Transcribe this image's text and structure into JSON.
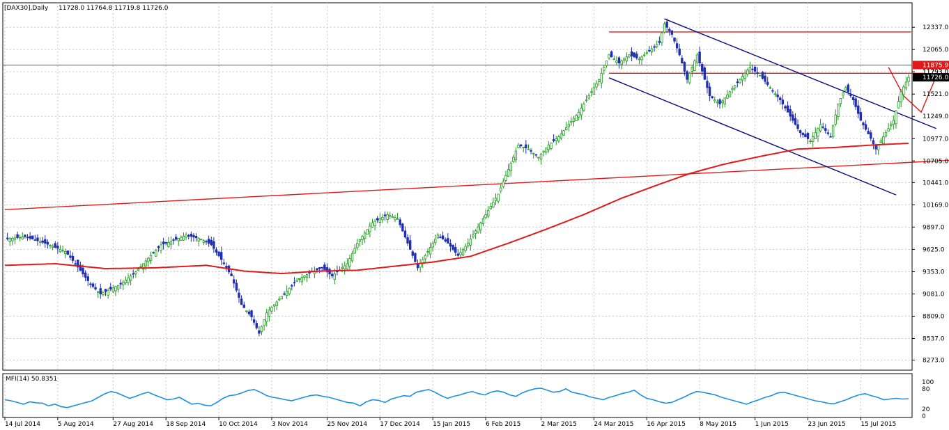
{
  "header": {
    "symbol": "[DAX30],Daily",
    "ohlc": "11728.0 11764.8 11719.8 11726.0"
  },
  "indicator": {
    "label": "MFI(14) 50.8351",
    "levels": [
      "100",
      "80",
      "20",
      "0"
    ]
  },
  "colors": {
    "bull": "#1a9a1a",
    "bear": "#1f2fb0",
    "ma": "#e01a1a",
    "trend": "#e01a1a",
    "channel": "#0a0a7a",
    "mfi": "#1e8fe0",
    "grid": "#c8c8c8",
    "price_tag_red": "#e01a1a",
    "price_tag_dark": "#000000"
  },
  "chart_data": [
    {
      "type": "candlestick",
      "title": "",
      "ylim": [
        8150,
        12500
      ],
      "yticks": [
        "12337.0",
        "12065.0",
        "11793.0",
        "11521.0",
        "11249.0",
        "10977.0",
        "10705.0",
        "10441.0",
        "10169.0",
        "9897.0",
        "9625.0",
        "9353.0",
        "9081.0",
        "8809.0",
        "8537.0",
        "8273.0"
      ],
      "xticks": [
        "14 Jul 2014",
        "5 Aug 2014",
        "27 Aug 2014",
        "18 Sep 2014",
        "10 Oct 2014",
        "3 Nov 2014",
        "25 Nov 2014",
        "17 Dec 2014",
        "15 Jan 2015",
        "6 Feb 2015",
        "2 Mar 2015",
        "24 Mar 2015",
        "16 Apr 2015",
        "8 May 2015",
        "1 Jun 2015",
        "23 Jun 2015",
        "15 Jul 2015"
      ],
      "close_path": [
        [
          0,
          9750
        ],
        [
          8,
          9780
        ],
        [
          16,
          9700
        ],
        [
          24,
          9600
        ],
        [
          28,
          9450
        ],
        [
          34,
          9200
        ],
        [
          38,
          9080
        ],
        [
          46,
          9200
        ],
        [
          52,
          9350
        ],
        [
          58,
          9550
        ],
        [
          62,
          9680
        ],
        [
          66,
          9720
        ],
        [
          72,
          9800
        ],
        [
          78,
          9750
        ],
        [
          82,
          9680
        ],
        [
          86,
          9500
        ],
        [
          90,
          9300
        ],
        [
          94,
          8950
        ],
        [
          98,
          8800
        ],
        [
          101,
          8600
        ],
        [
          104,
          8850
        ],
        [
          110,
          9050
        ],
        [
          116,
          9250
        ],
        [
          122,
          9350
        ],
        [
          126,
          9400
        ],
        [
          130,
          9300
        ],
        [
          136,
          9450
        ],
        [
          140,
          9700
        ],
        [
          146,
          9950
        ],
        [
          152,
          10050
        ],
        [
          156,
          10000
        ],
        [
          160,
          9700
        ],
        [
          164,
          9400
        ],
        [
          168,
          9600
        ],
        [
          172,
          9800
        ],
        [
          176,
          9700
        ],
        [
          180,
          9550
        ],
        [
          184,
          9700
        ],
        [
          188,
          9900
        ],
        [
          192,
          10100
        ],
        [
          196,
          10300
        ],
        [
          200,
          10600
        ],
        [
          204,
          10900
        ],
        [
          208,
          10850
        ],
        [
          212,
          10750
        ],
        [
          216,
          10900
        ],
        [
          220,
          11000
        ],
        [
          224,
          11150
        ],
        [
          228,
          11300
        ],
        [
          232,
          11500
        ],
        [
          236,
          11700
        ],
        [
          240,
          12000
        ],
        [
          244,
          11900
        ],
        [
          248,
          12000
        ],
        [
          252,
          11950
        ],
        [
          256,
          12050
        ],
        [
          260,
          12150
        ],
        [
          262,
          12380
        ],
        [
          265,
          12250
        ],
        [
          268,
          12000
        ],
        [
          271,
          11700
        ],
        [
          275,
          12000
        ],
        [
          280,
          11500
        ],
        [
          284,
          11400
        ],
        [
          288,
          11550
        ],
        [
          292,
          11700
        ],
        [
          296,
          11850
        ],
        [
          300,
          11750
        ],
        [
          304,
          11600
        ],
        [
          308,
          11450
        ],
        [
          312,
          11250
        ],
        [
          316,
          11050
        ],
        [
          320,
          10950
        ],
        [
          324,
          11150
        ],
        [
          328,
          11000
        ],
        [
          331,
          11400
        ],
        [
          334,
          11600
        ],
        [
          337,
          11450
        ],
        [
          340,
          11200
        ],
        [
          344,
          10980
        ],
        [
          346,
          10850
        ],
        [
          350,
          11050
        ],
        [
          353,
          11200
        ],
        [
          356,
          11550
        ],
        [
          359,
          11726
        ]
      ],
      "ma_path": [
        [
          0,
          9430
        ],
        [
          20,
          9450
        ],
        [
          40,
          9390
        ],
        [
          60,
          9400
        ],
        [
          80,
          9430
        ],
        [
          95,
          9360
        ],
        [
          110,
          9330
        ],
        [
          125,
          9360
        ],
        [
          140,
          9370
        ],
        [
          155,
          9420
        ],
        [
          170,
          9470
        ],
        [
          185,
          9540
        ],
        [
          200,
          9700
        ],
        [
          215,
          9870
        ],
        [
          230,
          10050
        ],
        [
          245,
          10250
        ],
        [
          260,
          10420
        ],
        [
          272,
          10550
        ],
        [
          285,
          10660
        ],
        [
          300,
          10760
        ],
        [
          315,
          10850
        ],
        [
          330,
          10870
        ],
        [
          345,
          10900
        ],
        [
          359,
          10920
        ]
      ],
      "trendlines": [
        {
          "kind": "support",
          "from": [
            0,
            10110
          ],
          "to": [
            380,
            10720
          ]
        },
        {
          "kind": "resistance",
          "from": [
            240,
            12280
          ],
          "to": [
            360,
            12280
          ]
        },
        {
          "kind": "resistance",
          "from": [
            240,
            11775
          ],
          "to": [
            365,
            11775
          ]
        },
        {
          "kind": "channel_upper",
          "from": [
            262,
            12440
          ],
          "to": [
            370,
            11100
          ]
        },
        {
          "kind": "channel_lower",
          "from": [
            240,
            11720
          ],
          "to": [
            354,
            10290
          ]
        }
      ],
      "projection": [
        [
          351,
          11850
        ],
        [
          357,
          11500
        ],
        [
          364,
          11300
        ],
        [
          370,
          11740
        ]
      ],
      "price_labels": [
        {
          "text": "11875.9",
          "value": 11875.9,
          "style": "red"
        },
        {
          "text": "11793.0",
          "value": 11793,
          "style": "plain"
        },
        {
          "text": "11726.0",
          "value": 11726,
          "style": "dark"
        }
      ]
    },
    {
      "type": "line",
      "title": "MFI(14) 50.8351",
      "ylim": [
        0,
        100
      ],
      "values": [
        48,
        45,
        40,
        35,
        42,
        39,
        38,
        30,
        35,
        28,
        25,
        30,
        35,
        40,
        45,
        55,
        65,
        72,
        68,
        60,
        52,
        58,
        65,
        70,
        62,
        55,
        48,
        50,
        55,
        45,
        35,
        38,
        32,
        30,
        40,
        52,
        60,
        62,
        68,
        75,
        78,
        70,
        60,
        55,
        52,
        48,
        45,
        50,
        55,
        60,
        62,
        58,
        55,
        50,
        45,
        40,
        38,
        30,
        42,
        48,
        46,
        40,
        50,
        55,
        60,
        58,
        70,
        74,
        78,
        70,
        60,
        52,
        58,
        62,
        68,
        72,
        66,
        62,
        70,
        74,
        70,
        62,
        58,
        68,
        75,
        80,
        82,
        76,
        70,
        72,
        80,
        70,
        66,
        62,
        56,
        52,
        48,
        55,
        60,
        66,
        70,
        76,
        62,
        52,
        48,
        42,
        38,
        40,
        48,
        56,
        65,
        72,
        70,
        66,
        62,
        55,
        50,
        45,
        40,
        35,
        42,
        48,
        55,
        60,
        68,
        70,
        65,
        60,
        55,
        50,
        45,
        42,
        38,
        36,
        42,
        48,
        56,
        62,
        66,
        60,
        55,
        48,
        50,
        52,
        50,
        51
      ]
    }
  ]
}
